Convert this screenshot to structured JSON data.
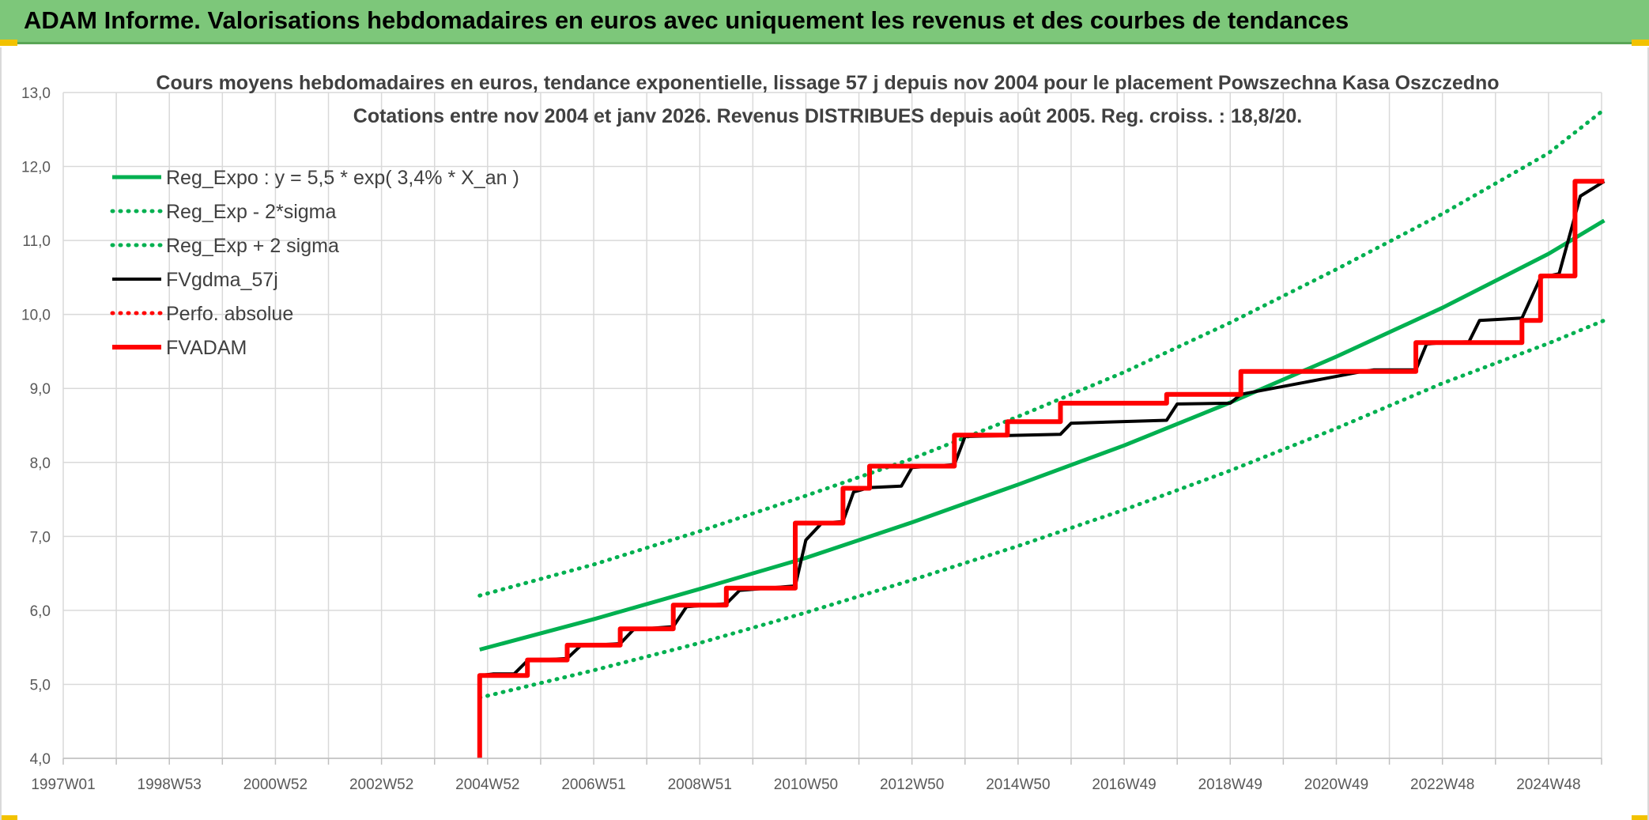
{
  "banner": {
    "title": "ADAM Informe. Valorisations hebdomadaires en euros avec uniquement les revenus et des courbes de tendances"
  },
  "colors": {
    "banner_bg": "#7dc77a",
    "green": "#00b050",
    "black": "#000000",
    "red": "#ff0000",
    "grid": "#d9d9d9"
  },
  "chart_data": {
    "type": "line",
    "title_line1": "Cours moyens hebdomadaires en euros, tendance exponentielle, lissage 57 j depuis nov 2004 pour le placement Powszechna Kasa Oszczedno",
    "title_line2": "Cotations entre nov 2004 et janv 2026. Revenus DISTRIBUES depuis août 2005. Reg. croiss. : 18,8/20.",
    "xlabel": "",
    "ylabel": "",
    "ylim": [
      4.0,
      13.0
    ],
    "xlim": [
      1997.0,
      2026.0
    ],
    "y_ticks": [
      "4,0",
      "5,0",
      "6,0",
      "7,0",
      "8,0",
      "9,0",
      "10,0",
      "11,0",
      "12,0",
      "13,0"
    ],
    "x_ticks": [
      {
        "label": "1997W01",
        "x": 1997.0
      },
      {
        "label": "1998W53",
        "x": 1999.0
      },
      {
        "label": "2000W52",
        "x": 2001.0
      },
      {
        "label": "2002W52",
        "x": 2003.0
      },
      {
        "label": "2004W52",
        "x": 2005.0
      },
      {
        "label": "2006W51",
        "x": 2007.0
      },
      {
        "label": "2008W51",
        "x": 2009.0
      },
      {
        "label": "2010W50",
        "x": 2011.0
      },
      {
        "label": "2012W50",
        "x": 2013.0
      },
      {
        "label": "2014W50",
        "x": 2015.0
      },
      {
        "label": "2016W49",
        "x": 2017.0
      },
      {
        "label": "2018W49",
        "x": 2019.0
      },
      {
        "label": "2020W49",
        "x": 2021.0
      },
      {
        "label": "2022W48",
        "x": 2023.0
      },
      {
        "label": "2024W48",
        "x": 2025.0
      }
    ],
    "grid": true,
    "legend_position": "top-left",
    "series": [
      {
        "name": "Reg_Expo : y = 5,5 * exp( 3,4% *  X_an )",
        "color": "#00b050",
        "style": "solid",
        "x": [
          2004.85,
          2007,
          2009,
          2011,
          2013,
          2015,
          2017,
          2019,
          2021,
          2023,
          2025,
          2026.05
        ],
        "y": [
          5.47,
          5.88,
          6.29,
          6.71,
          7.19,
          7.7,
          8.23,
          8.81,
          9.43,
          10.09,
          10.82,
          11.27
        ]
      },
      {
        "name": "Reg_Exp - 2*sigma",
        "color": "#00b050",
        "style": "dotted",
        "x": [
          2004.85,
          2007,
          2009,
          2011,
          2013,
          2015,
          2017,
          2019,
          2021,
          2023,
          2025,
          2026.05
        ],
        "y": [
          4.82,
          5.19,
          5.56,
          5.97,
          6.41,
          6.87,
          7.36,
          7.89,
          8.46,
          9.07,
          9.61,
          9.92
        ]
      },
      {
        "name": "Reg_Exp + 2 sigma",
        "color": "#00b050",
        "style": "dotted",
        "x": [
          2004.85,
          2007,
          2009,
          2011,
          2013,
          2015,
          2017,
          2019,
          2021,
          2023,
          2025,
          2026.05
        ],
        "y": [
          6.2,
          6.62,
          7.07,
          7.55,
          8.05,
          8.62,
          9.22,
          9.89,
          10.61,
          11.36,
          12.18,
          12.77
        ]
      },
      {
        "name": "FVgdma_57j",
        "color": "#000000",
        "style": "solid",
        "x": [
          2004.85,
          2005.1,
          2005.5,
          2005.75,
          2006.5,
          2006.75,
          2007.5,
          2007.75,
          2008.5,
          2008.75,
          2009.5,
          2009.75,
          2010.8,
          2011.0,
          2011.3,
          2011.7,
          2011.9,
          2012.2,
          2012.8,
          2013.0,
          2013.8,
          2014.0,
          2015.8,
          2016.0,
          2017.8,
          2018.0,
          2019.0,
          2019.2,
          2021.5,
          2021.7,
          2022.5,
          2022.7,
          2023.0,
          2023.5,
          2023.7,
          2024.5,
          2024.85,
          2025.2,
          2025.6,
          2026.05
        ],
        "y": [
          5.12,
          5.14,
          5.14,
          5.32,
          5.35,
          5.52,
          5.55,
          5.74,
          5.78,
          6.05,
          6.09,
          6.27,
          6.33,
          6.95,
          7.18,
          7.2,
          7.6,
          7.66,
          7.68,
          7.93,
          7.97,
          8.35,
          8.38,
          8.53,
          8.57,
          8.79,
          8.8,
          8.92,
          9.23,
          9.25,
          9.25,
          9.6,
          9.62,
          9.63,
          9.92,
          9.95,
          10.5,
          10.55,
          11.6,
          11.8
        ]
      },
      {
        "name": "Perfo. absolue",
        "color": "#ff0000",
        "style": "dotted",
        "x": [],
        "y": []
      },
      {
        "name": "FVADAM",
        "color": "#ff0000",
        "style": "solid",
        "x": [
          2004.85,
          2004.85,
          2005.75,
          2005.75,
          2006.5,
          2006.5,
          2007.5,
          2007.5,
          2008.5,
          2008.5,
          2009.5,
          2009.5,
          2010.8,
          2010.8,
          2011.7,
          2011.7,
          2012.2,
          2012.2,
          2013.8,
          2013.8,
          2014.8,
          2014.8,
          2015.8,
          2015.8,
          2017.8,
          2017.8,
          2019.2,
          2019.2,
          2020.7,
          2020.7,
          2022.5,
          2022.5,
          2022.5,
          2024.5,
          2024.5,
          2024.85,
          2024.85,
          2025.5,
          2025.5,
          2026.05
        ],
        "y": [
          4.0,
          5.12,
          5.12,
          5.33,
          5.33,
          5.53,
          5.53,
          5.75,
          5.75,
          6.07,
          6.07,
          6.3,
          6.3,
          7.18,
          7.18,
          7.65,
          7.65,
          7.95,
          7.95,
          8.37,
          8.37,
          8.55,
          8.55,
          8.8,
          8.8,
          8.92,
          8.92,
          9.23,
          9.23,
          9.23,
          9.23,
          9.62,
          9.62,
          9.62,
          9.92,
          9.92,
          10.52,
          10.52,
          11.8,
          11.8
        ]
      }
    ]
  }
}
